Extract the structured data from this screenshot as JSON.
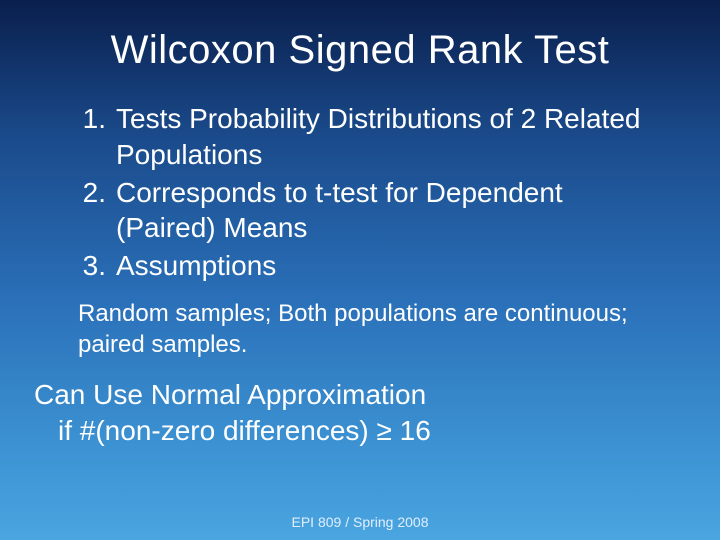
{
  "colors": {
    "gradient_top": "#0a1f4d",
    "gradient_mid1": "#1a4a8a",
    "gradient_mid2": "#2a6fb8",
    "gradient_mid3": "#3a8fd0",
    "gradient_bottom": "#4aa5e0",
    "text": "#ffffff"
  },
  "title": "Wilcoxon Signed Rank Test",
  "list": {
    "item1_num": "1.",
    "item1_text": "Tests Probability Distributions of 2 Related Populations",
    "item2_num": "2.",
    "item2_text": "Corresponds to t-test for Dependent (Paired) Means",
    "item3_num": "3.",
    "item3_text": "Assumptions"
  },
  "sub_text": "Random samples; Both populations are continuous; paired samples.",
  "normal_line1": "Can Use Normal Approximation",
  "normal_line2": "if #(non-zero differences) ≥ 16",
  "footer": "EPI 809 / Spring 2008",
  "typography": {
    "title_fontsize": 40,
    "body_fontsize": 28,
    "sub_fontsize": 24,
    "footer_fontsize": 14,
    "font_family": "Arial"
  }
}
